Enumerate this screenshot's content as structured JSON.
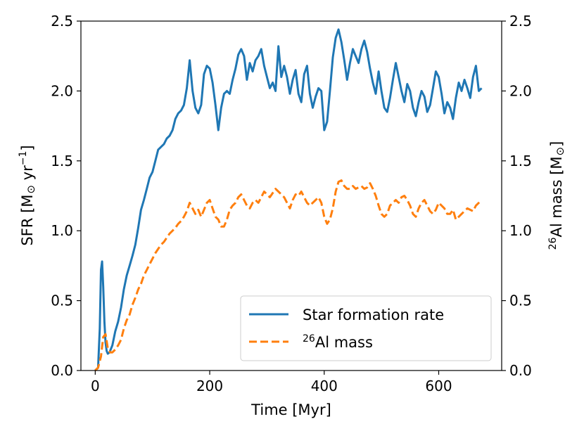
{
  "chart_data": {
    "type": "line",
    "title": "",
    "xlabel": "Time [Myr]",
    "ylabel_left": "SFR [M⊙ yr⁻¹]",
    "ylabel_right": "26Al mass [M⊙]",
    "xlim": [
      -25,
      710
    ],
    "ylim_left": [
      0,
      2.5
    ],
    "ylim_right": [
      0,
      2.5
    ],
    "grid": false,
    "legend_position": "lower-right",
    "x_ticks": [
      0,
      200,
      400,
      600
    ],
    "x_tick_labels": [
      "0",
      "200",
      "400",
      "600"
    ],
    "y_ticks": [
      0,
      0.5,
      1.0,
      1.5,
      2.0,
      2.5
    ],
    "y_tick_labels_left": [
      "0.0",
      "0.5",
      "1.0",
      "1.5",
      "2.0",
      "2.5"
    ],
    "y_tick_labels_right": [
      "0.0",
      "0.5",
      "1.0",
      "1.5",
      "2.0",
      "2.5"
    ],
    "series": [
      {
        "name": "Star formation rate",
        "axis": "left",
        "color": "#1f77b4",
        "style": "solid",
        "x": [
          0,
          5,
          8,
          10,
          12,
          14,
          16,
          18,
          20,
          22,
          25,
          30,
          35,
          40,
          45,
          50,
          55,
          60,
          65,
          70,
          75,
          80,
          85,
          90,
          95,
          100,
          105,
          110,
          115,
          120,
          125,
          130,
          135,
          140,
          145,
          150,
          155,
          160,
          165,
          170,
          175,
          180,
          185,
          190,
          195,
          200,
          205,
          210,
          215,
          220,
          225,
          230,
          235,
          240,
          245,
          250,
          255,
          260,
          265,
          270,
          275,
          280,
          285,
          290,
          295,
          300,
          305,
          310,
          315,
          320,
          325,
          330,
          335,
          340,
          345,
          350,
          355,
          360,
          365,
          370,
          375,
          380,
          385,
          390,
          395,
          400,
          405,
          410,
          415,
          420,
          425,
          430,
          435,
          440,
          445,
          450,
          455,
          460,
          465,
          470,
          475,
          480,
          485,
          490,
          495,
          500,
          505,
          510,
          515,
          520,
          525,
          530,
          535,
          540,
          545,
          550,
          555,
          560,
          565,
          570,
          575,
          580,
          585,
          590,
          595,
          600,
          605,
          610,
          615,
          620,
          625,
          630,
          635,
          640,
          645,
          650,
          655,
          660,
          665,
          670,
          675
        ],
        "values": [
          0.0,
          0.02,
          0.3,
          0.72,
          0.78,
          0.6,
          0.35,
          0.2,
          0.14,
          0.12,
          0.13,
          0.18,
          0.28,
          0.35,
          0.45,
          0.58,
          0.68,
          0.75,
          0.82,
          0.9,
          1.02,
          1.15,
          1.22,
          1.3,
          1.38,
          1.42,
          1.5,
          1.58,
          1.6,
          1.62,
          1.66,
          1.68,
          1.72,
          1.8,
          1.84,
          1.86,
          1.9,
          2.02,
          2.22,
          2.0,
          1.88,
          1.84,
          1.9,
          2.12,
          2.18,
          2.16,
          2.06,
          1.9,
          1.72,
          1.88,
          1.98,
          2.0,
          1.98,
          2.08,
          2.16,
          2.26,
          2.3,
          2.25,
          2.08,
          2.2,
          2.14,
          2.22,
          2.25,
          2.3,
          2.18,
          2.1,
          2.02,
          2.06,
          2.0,
          2.32,
          2.1,
          2.18,
          2.1,
          1.98,
          2.08,
          2.15,
          1.98,
          1.92,
          2.12,
          2.18,
          1.98,
          1.88,
          1.96,
          2.02,
          2.0,
          1.72,
          1.78,
          2.0,
          2.24,
          2.38,
          2.44,
          2.35,
          2.22,
          2.08,
          2.2,
          2.3,
          2.25,
          2.2,
          2.3,
          2.36,
          2.28,
          2.16,
          2.06,
          1.98,
          2.14,
          2.0,
          1.88,
          1.85,
          1.95,
          2.08,
          2.2,
          2.1,
          2.0,
          1.92,
          2.05,
          2.0,
          1.88,
          1.82,
          1.92,
          2.0,
          1.96,
          1.85,
          1.9,
          2.02,
          2.14,
          2.1,
          1.98,
          1.84,
          1.92,
          1.88,
          1.8,
          1.95,
          2.06,
          2.0,
          2.08,
          2.02,
          1.95,
          2.1,
          2.18,
          2.0,
          2.02
        ]
      },
      {
        "name": "26Al mass",
        "axis": "right",
        "color": "#ff7f0e",
        "style": "dashed",
        "x": [
          0,
          5,
          10,
          14,
          18,
          22,
          26,
          30,
          35,
          40,
          45,
          50,
          55,
          60,
          65,
          70,
          75,
          80,
          85,
          90,
          95,
          100,
          105,
          110,
          115,
          120,
          125,
          130,
          135,
          140,
          145,
          150,
          155,
          160,
          165,
          170,
          175,
          180,
          185,
          190,
          195,
          200,
          205,
          210,
          215,
          220,
          225,
          230,
          235,
          240,
          245,
          250,
          255,
          260,
          265,
          270,
          275,
          280,
          285,
          290,
          295,
          300,
          305,
          310,
          315,
          320,
          325,
          330,
          335,
          340,
          345,
          350,
          355,
          360,
          365,
          370,
          375,
          380,
          385,
          390,
          395,
          400,
          405,
          410,
          415,
          420,
          425,
          430,
          435,
          440,
          445,
          450,
          455,
          460,
          465,
          470,
          475,
          480,
          485,
          490,
          495,
          500,
          505,
          510,
          515,
          520,
          525,
          530,
          535,
          540,
          545,
          550,
          555,
          560,
          565,
          570,
          575,
          580,
          585,
          590,
          595,
          600,
          605,
          610,
          615,
          620,
          625,
          630,
          635,
          640,
          645,
          650,
          655,
          660,
          665,
          670,
          675
        ],
        "values": [
          0.0,
          0.02,
          0.1,
          0.24,
          0.26,
          0.16,
          0.13,
          0.13,
          0.15,
          0.18,
          0.22,
          0.3,
          0.36,
          0.4,
          0.47,
          0.52,
          0.58,
          0.62,
          0.68,
          0.72,
          0.76,
          0.8,
          0.84,
          0.87,
          0.9,
          0.92,
          0.95,
          0.98,
          1.0,
          1.02,
          1.05,
          1.07,
          1.1,
          1.14,
          1.2,
          1.16,
          1.12,
          1.15,
          1.1,
          1.15,
          1.2,
          1.22,
          1.16,
          1.1,
          1.08,
          1.03,
          1.03,
          1.08,
          1.15,
          1.18,
          1.2,
          1.24,
          1.26,
          1.22,
          1.18,
          1.16,
          1.2,
          1.22,
          1.2,
          1.24,
          1.28,
          1.26,
          1.24,
          1.27,
          1.3,
          1.28,
          1.26,
          1.24,
          1.2,
          1.16,
          1.22,
          1.26,
          1.25,
          1.28,
          1.24,
          1.2,
          1.18,
          1.2,
          1.22,
          1.24,
          1.2,
          1.1,
          1.05,
          1.08,
          1.16,
          1.28,
          1.35,
          1.36,
          1.32,
          1.3,
          1.3,
          1.32,
          1.3,
          1.31,
          1.32,
          1.3,
          1.31,
          1.34,
          1.3,
          1.25,
          1.18,
          1.12,
          1.1,
          1.12,
          1.18,
          1.2,
          1.22,
          1.2,
          1.24,
          1.25,
          1.22,
          1.18,
          1.12,
          1.1,
          1.16,
          1.2,
          1.22,
          1.18,
          1.14,
          1.12,
          1.15,
          1.2,
          1.18,
          1.16,
          1.12,
          1.12,
          1.15,
          1.08,
          1.1,
          1.12,
          1.14,
          1.16,
          1.15,
          1.14,
          1.18,
          1.2,
          1.22
        ]
      }
    ]
  }
}
